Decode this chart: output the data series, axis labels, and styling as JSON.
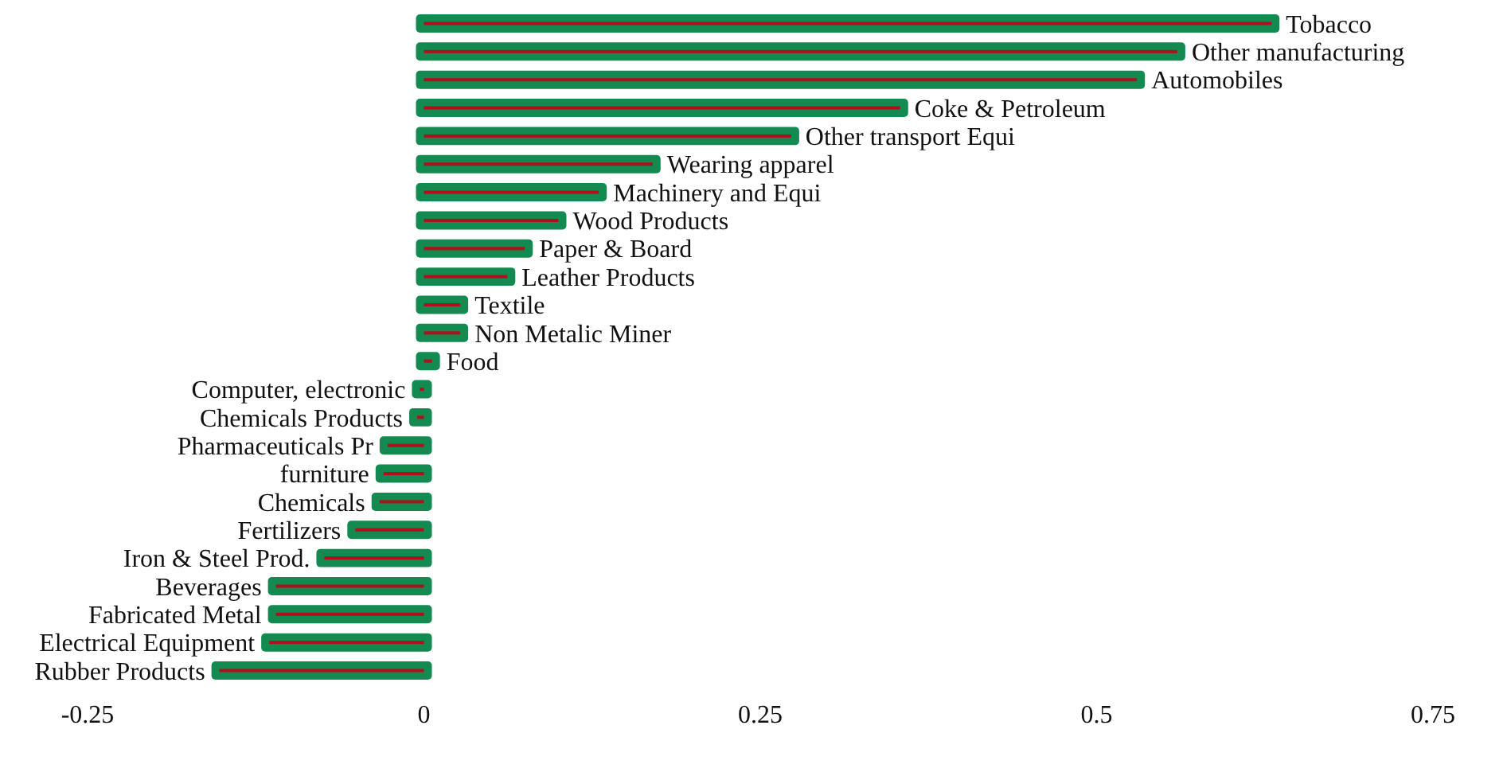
{
  "chart_data": {
    "type": "bar",
    "orientation": "horizontal",
    "categories": [
      "Tobacco",
      "Other manufacturing",
      "Automobiles",
      "Coke & Petroleum",
      "Other transport  Equi",
      "Wearing apparel",
      "Machinery and  Equi",
      "Wood Products",
      "Paper & Board",
      "Leather Products",
      "Textile",
      "Non Metalic Miner",
      "Food",
      "Computer, electronic",
      "Chemicals Products",
      "Pharmaceuticals Pr",
      "furniture",
      "Chemicals",
      "Fertilizers",
      "Iron & Steel Prod.",
      "Beverages",
      "Fabricated Metal",
      "Electrical Equipment",
      "Rubber Products"
    ],
    "series": [
      {
        "color": "#138a50",
        "values": [
          0.63,
          0.56,
          0.53,
          0.354,
          0.273,
          0.17,
          0.13,
          0.1,
          0.075,
          0.062,
          0.027,
          0.027,
          0.006,
          -0.003,
          -0.005,
          -0.027,
          -0.03,
          -0.033,
          -0.051,
          -0.074,
          -0.11,
          -0.11,
          -0.115,
          -0.152
        ]
      },
      {
        "color": "#b0101c",
        "values": [
          0.63,
          0.56,
          0.53,
          0.354,
          0.273,
          0.17,
          0.13,
          0.1,
          0.075,
          0.062,
          0.027,
          0.027,
          0.006,
          -0.003,
          -0.005,
          -0.027,
          -0.03,
          -0.033,
          -0.051,
          -0.074,
          -0.11,
          -0.11,
          -0.115,
          -0.152
        ]
      }
    ],
    "xlim": [
      -0.25,
      0.75
    ],
    "xticks": [
      -0.25,
      0,
      0.25,
      0.5,
      0.75
    ],
    "grid": false
  }
}
